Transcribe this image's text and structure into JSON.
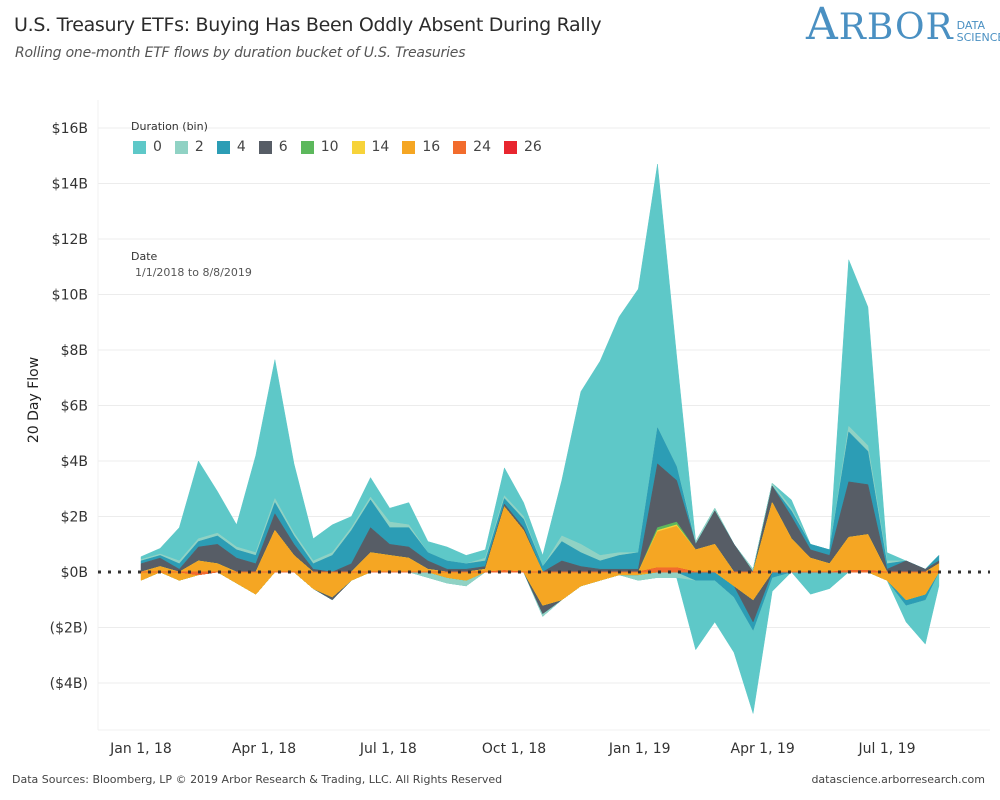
{
  "header": {
    "title": "U.S. Treasury ETFs: Buying Has Been Oddly Absent During Rally",
    "subtitle": "Rolling  one-month ETF flows by duration bucket of U.S. Treasuries"
  },
  "logo": {
    "main_initial": "A",
    "main_rest": "RBOR",
    "sub_line1": "DATA",
    "sub_line2": "SCIENCE"
  },
  "legend": {
    "title": "Duration (bin)",
    "items": [
      {
        "label": "0",
        "color": "#5ec8c8"
      },
      {
        "label": "2",
        "color": "#90d2c4"
      },
      {
        "label": "4",
        "color": "#2c9db5"
      },
      {
        "label": "6",
        "color": "#575d66"
      },
      {
        "label": "10",
        "color": "#5cb85c"
      },
      {
        "label": "14",
        "color": "#f7d33a"
      },
      {
        "label": "16",
        "color": "#f5a623"
      },
      {
        "label": "24",
        "color": "#f26c2d"
      },
      {
        "label": "26",
        "color": "#e8262f"
      }
    ]
  },
  "filter": {
    "title": "Date",
    "value": "1/1/2018 to 8/8/2019"
  },
  "footer": {
    "left": "Data Sources: Bloomberg, LP © 2019 Arbor Research & Trading, LLC. All Rights Reserved",
    "right": "datascience.arborresearch.com"
  },
  "chart_data": {
    "type": "area",
    "stacked": true,
    "title": "U.S. Treasury ETFs: Buying Has Been Oddly Absent During Rally",
    "xlabel": "",
    "ylabel": "20 Day Flow",
    "ylim": [
      -5,
      16.5
    ],
    "yticks": [
      16,
      14,
      12,
      10,
      8,
      6,
      4,
      2,
      0,
      -2,
      -4
    ],
    "ytick_labels": [
      "$16B",
      "$14B",
      "$12B",
      "$10B",
      "$8B",
      "$6B",
      "$4B",
      "$2B",
      "$0B",
      "($2B)",
      "($4B)"
    ],
    "xlim": [
      "2017-12-29",
      "2019-08-31"
    ],
    "xticks": [
      "2018-01-01",
      "2018-04-01",
      "2018-07-01",
      "2018-10-01",
      "2019-01-01",
      "2019-04-01",
      "2019-07-01"
    ],
    "xtick_labels": [
      "Jan 1, 18",
      "Apr 1, 18",
      "Jul 1, 18",
      "Oct 1, 18",
      "Jan 1, 19",
      "Apr 1, 19",
      "Jul 1, 19"
    ],
    "zero_line": "dotted",
    "grid": true,
    "units": "USD billions",
    "x": [
      "2018-01-01",
      "2018-01-15",
      "2018-01-29",
      "2018-02-12",
      "2018-02-26",
      "2018-03-12",
      "2018-03-26",
      "2018-04-09",
      "2018-04-23",
      "2018-05-07",
      "2018-05-21",
      "2018-06-04",
      "2018-06-18",
      "2018-07-02",
      "2018-07-16",
      "2018-07-30",
      "2018-08-13",
      "2018-08-27",
      "2018-09-10",
      "2018-09-24",
      "2018-10-08",
      "2018-10-22",
      "2018-11-05",
      "2018-11-19",
      "2018-12-03",
      "2018-12-17",
      "2018-12-31",
      "2019-01-14",
      "2019-01-28",
      "2019-02-11",
      "2019-02-25",
      "2019-03-11",
      "2019-03-25",
      "2019-04-08",
      "2019-04-22",
      "2019-05-06",
      "2019-05-20",
      "2019-06-03",
      "2019-06-17",
      "2019-07-01",
      "2019-07-15",
      "2019-07-29",
      "2019-08-08"
    ],
    "series": [
      {
        "name": "0",
        "color": "#5ec8c8",
        "values": [
          0.1,
          0.2,
          1.2,
          2.8,
          1.5,
          0.8,
          3.5,
          5.0,
          2.5,
          0.8,
          1.0,
          0.4,
          0.7,
          0.5,
          0.8,
          0.4,
          0.5,
          0.3,
          0.3,
          1.0,
          0.5,
          0.4,
          2.0,
          5.5,
          7.0,
          8.5,
          9.5,
          9.5,
          4.0,
          -2.5,
          -1.5,
          -2.0,
          -3.0,
          -0.5,
          0.3,
          -0.8,
          -0.6,
          6.0,
          5.0,
          0.3,
          -0.6,
          -1.6,
          -0.5
        ]
      },
      {
        "name": "2",
        "color": "#90d2c4",
        "values": [
          0.05,
          0.05,
          0.1,
          0.1,
          0.1,
          0.1,
          0.1,
          0.15,
          0.1,
          0.1,
          0.1,
          0.1,
          0.1,
          0.2,
          0.1,
          -0.2,
          -0.2,
          -0.2,
          0.1,
          0.1,
          0.1,
          -0.1,
          0.2,
          0.3,
          0.2,
          0.1,
          -0.2,
          -0.2,
          -0.2,
          0.1,
          0.1,
          0.0,
          0.1,
          0.1,
          0.1,
          0.0,
          0.0,
          0.2,
          0.2,
          0.1,
          0.0,
          0.0,
          0.0
        ]
      },
      {
        "name": "4",
        "color": "#2c9db5",
        "values": [
          0.1,
          0.1,
          0.2,
          0.2,
          0.3,
          0.3,
          0.3,
          0.4,
          0.3,
          0.2,
          0.6,
          1.2,
          1.0,
          0.6,
          0.7,
          0.3,
          0.3,
          0.2,
          0.2,
          0.2,
          0.3,
          0.2,
          0.7,
          0.5,
          0.3,
          0.5,
          0.6,
          1.3,
          0.5,
          -0.3,
          -0.3,
          -0.4,
          -0.3,
          -0.2,
          0.2,
          0.2,
          0.2,
          1.8,
          1.2,
          0.2,
          -0.2,
          -0.2,
          0.2
        ]
      },
      {
        "name": "6",
        "color": "#575d66",
        "values": [
          0.3,
          0.3,
          0.1,
          0.5,
          0.7,
          0.5,
          0.3,
          0.6,
          0.4,
          0.1,
          -0.1,
          0.3,
          0.9,
          0.4,
          0.4,
          0.3,
          0.1,
          0.1,
          0.1,
          0.1,
          0.1,
          -0.3,
          0.4,
          0.2,
          0.1,
          0.1,
          0.1,
          2.3,
          1.5,
          0.2,
          1.2,
          1.0,
          -0.8,
          0.6,
          0.8,
          0.3,
          0.3,
          2.0,
          1.8,
          0.1,
          0.4,
          0.1,
          0.1
        ]
      },
      {
        "name": "10",
        "color": "#5cb85c",
        "values": [
          0,
          0,
          0,
          0,
          0,
          0,
          0,
          0,
          0,
          0,
          0,
          0,
          0,
          0,
          0,
          0,
          0,
          0,
          0,
          0,
          0,
          0,
          0,
          0,
          0,
          0,
          0,
          0.1,
          0.1,
          0,
          0,
          0,
          0,
          0,
          0,
          0,
          0,
          0,
          0,
          0,
          0,
          0,
          0
        ]
      },
      {
        "name": "14",
        "color": "#f7d33a",
        "values": [
          0,
          0,
          0,
          0,
          0,
          0,
          0,
          0,
          0,
          0,
          0,
          0,
          0,
          0,
          0,
          0,
          0,
          0,
          0,
          0,
          0,
          0,
          0,
          0,
          0,
          0,
          0,
          0.05,
          0.05,
          0,
          0,
          0,
          0,
          0,
          0,
          0,
          0,
          0,
          0,
          0,
          0,
          0,
          0
        ]
      },
      {
        "name": "16",
        "color": "#f5a623",
        "values": [
          -0.3,
          0.2,
          -0.3,
          0.4,
          0.3,
          -0.4,
          -0.8,
          1.5,
          0.6,
          -0.6,
          -0.9,
          -0.3,
          0.7,
          0.6,
          0.5,
          0.1,
          -0.2,
          -0.3,
          0.1,
          2.3,
          1.5,
          -1.2,
          -1.0,
          -0.5,
          -0.3,
          -0.1,
          -0.1,
          1.3,
          1.5,
          0.8,
          1.0,
          -0.5,
          -1.0,
          2.5,
          1.2,
          0.5,
          0.3,
          1.2,
          1.3,
          -0.3,
          -1.0,
          -0.8,
          0.3
        ]
      },
      {
        "name": "24",
        "color": "#f26c2d",
        "values": [
          0,
          0,
          0,
          -0.1,
          0,
          0,
          0,
          0,
          0,
          0,
          0,
          0,
          0,
          0,
          0,
          0,
          0,
          0,
          0,
          0.05,
          0,
          0,
          0,
          0,
          0,
          0,
          0,
          0.15,
          0.15,
          0,
          0,
          0,
          0,
          0,
          0,
          0,
          0,
          0.05,
          0.05,
          0,
          0,
          0,
          0
        ]
      },
      {
        "name": "26",
        "color": "#e8262f",
        "values": [
          0,
          0,
          0,
          0,
          0,
          0,
          0,
          0,
          0,
          0,
          0,
          0,
          0,
          0,
          0,
          0,
          0,
          0,
          0,
          0,
          0,
          0,
          0,
          0,
          0,
          0,
          0,
          0,
          0,
          0,
          0,
          0,
          0,
          0,
          0,
          0,
          0,
          0,
          0,
          0,
          0,
          0,
          0
        ]
      }
    ]
  }
}
